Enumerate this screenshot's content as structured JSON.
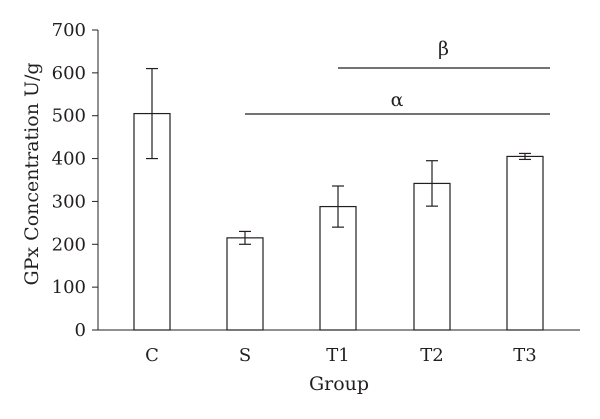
{
  "chart_data": {
    "type": "bar",
    "categories": [
      "C",
      "S",
      "T1",
      "T2",
      "T3"
    ],
    "values": [
      505,
      215,
      288,
      342,
      405
    ],
    "errors": [
      105,
      15,
      48,
      53,
      7
    ],
    "xlabel": "Group",
    "ylabel": "GPx Concentration U/g",
    "ylim": [
      0,
      700
    ],
    "yticks": [
      0,
      100,
      200,
      300,
      400,
      500,
      600,
      700
    ],
    "grid": false,
    "bar_fill": "#ffffff",
    "bar_stroke": "#231f20",
    "annotations": [
      {
        "label": "β",
        "from": "T1",
        "to": "T3"
      },
      {
        "label": "α",
        "from": "S",
        "to": "T3"
      }
    ]
  }
}
